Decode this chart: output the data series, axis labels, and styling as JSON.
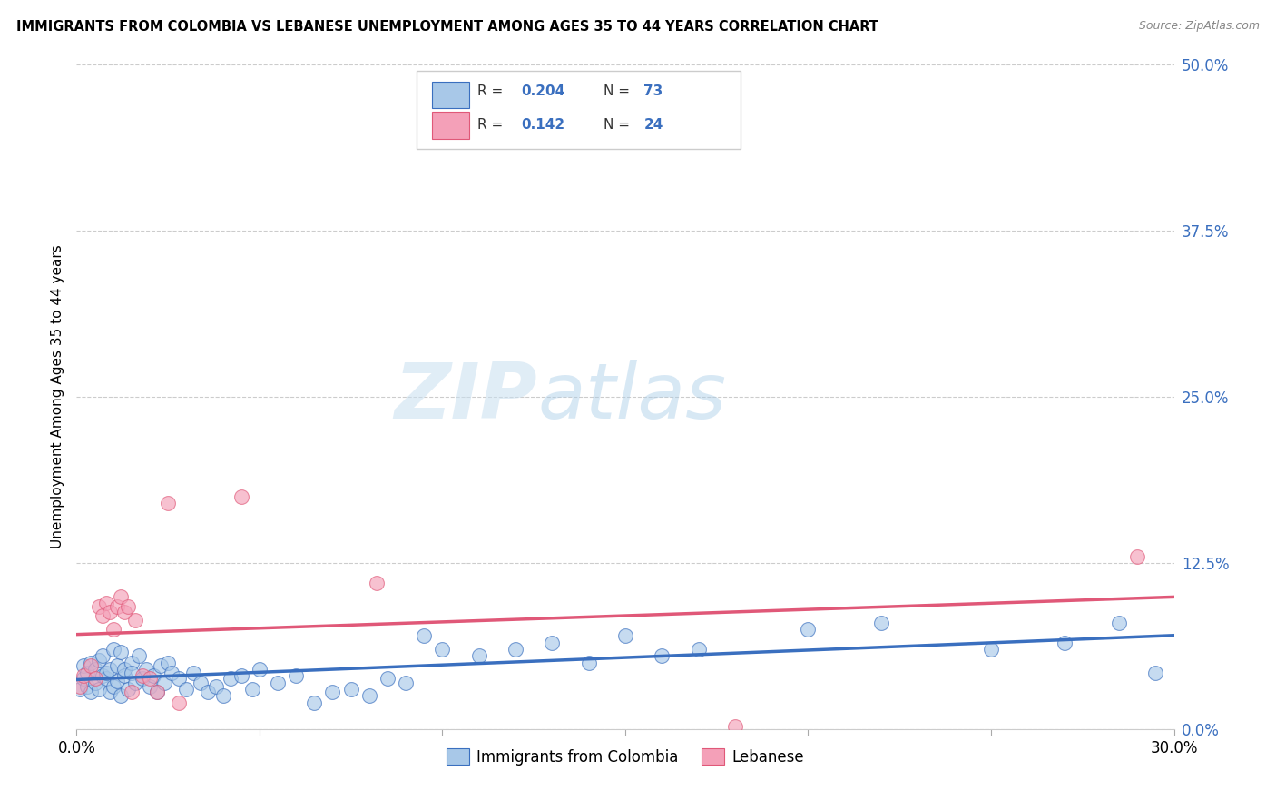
{
  "title": "IMMIGRANTS FROM COLOMBIA VS LEBANESE UNEMPLOYMENT AMONG AGES 35 TO 44 YEARS CORRELATION CHART",
  "source": "Source: ZipAtlas.com",
  "ylabel": "Unemployment Among Ages 35 to 44 years",
  "xlim": [
    0.0,
    0.3
  ],
  "ylim": [
    0.0,
    0.5
  ],
  "yticks": [
    0.0,
    0.125,
    0.25,
    0.375,
    0.5
  ],
  "ytick_labels": [
    "0.0%",
    "12.5%",
    "25.0%",
    "37.5%",
    "50.0%"
  ],
  "xticks": [
    0.0,
    0.05,
    0.1,
    0.15,
    0.2,
    0.25,
    0.3
  ],
  "color_colombia": "#a8c8e8",
  "color_lebanese": "#f4a0b8",
  "color_line_colombia": "#3a6fbf",
  "color_line_lebanese": "#e05878",
  "watermark_zip": "ZIP",
  "watermark_atlas": "atlas",
  "colombia_x": [
    0.001,
    0.002,
    0.002,
    0.003,
    0.003,
    0.004,
    0.004,
    0.005,
    0.005,
    0.006,
    0.006,
    0.007,
    0.007,
    0.008,
    0.008,
    0.009,
    0.009,
    0.01,
    0.01,
    0.011,
    0.011,
    0.012,
    0.012,
    0.013,
    0.013,
    0.014,
    0.015,
    0.015,
    0.016,
    0.017,
    0.018,
    0.019,
    0.02,
    0.021,
    0.022,
    0.023,
    0.024,
    0.025,
    0.026,
    0.028,
    0.03,
    0.032,
    0.034,
    0.036,
    0.038,
    0.04,
    0.042,
    0.045,
    0.048,
    0.05,
    0.055,
    0.06,
    0.065,
    0.07,
    0.075,
    0.08,
    0.085,
    0.09,
    0.095,
    0.1,
    0.11,
    0.12,
    0.13,
    0.14,
    0.15,
    0.16,
    0.17,
    0.2,
    0.22,
    0.25,
    0.27,
    0.285,
    0.295
  ],
  "colombia_y": [
    0.03,
    0.038,
    0.048,
    0.032,
    0.042,
    0.028,
    0.05,
    0.035,
    0.045,
    0.03,
    0.052,
    0.04,
    0.055,
    0.038,
    0.042,
    0.028,
    0.045,
    0.032,
    0.06,
    0.036,
    0.048,
    0.025,
    0.058,
    0.04,
    0.045,
    0.03,
    0.05,
    0.042,
    0.035,
    0.055,
    0.038,
    0.045,
    0.032,
    0.04,
    0.028,
    0.048,
    0.035,
    0.05,
    0.042,
    0.038,
    0.03,
    0.042,
    0.035,
    0.028,
    0.032,
    0.025,
    0.038,
    0.04,
    0.03,
    0.045,
    0.035,
    0.04,
    0.02,
    0.028,
    0.03,
    0.025,
    0.038,
    0.035,
    0.07,
    0.06,
    0.055,
    0.06,
    0.065,
    0.05,
    0.07,
    0.055,
    0.06,
    0.075,
    0.08,
    0.06,
    0.065,
    0.08,
    0.042
  ],
  "lebanese_x": [
    0.001,
    0.002,
    0.004,
    0.005,
    0.006,
    0.007,
    0.008,
    0.009,
    0.01,
    0.011,
    0.012,
    0.013,
    0.014,
    0.015,
    0.016,
    0.018,
    0.02,
    0.022,
    0.025,
    0.028,
    0.045,
    0.082,
    0.18,
    0.29
  ],
  "lebanese_y": [
    0.032,
    0.04,
    0.048,
    0.038,
    0.092,
    0.085,
    0.095,
    0.088,
    0.075,
    0.092,
    0.1,
    0.088,
    0.092,
    0.028,
    0.082,
    0.04,
    0.038,
    0.028,
    0.17,
    0.02,
    0.175,
    0.11,
    0.002,
    0.13
  ]
}
